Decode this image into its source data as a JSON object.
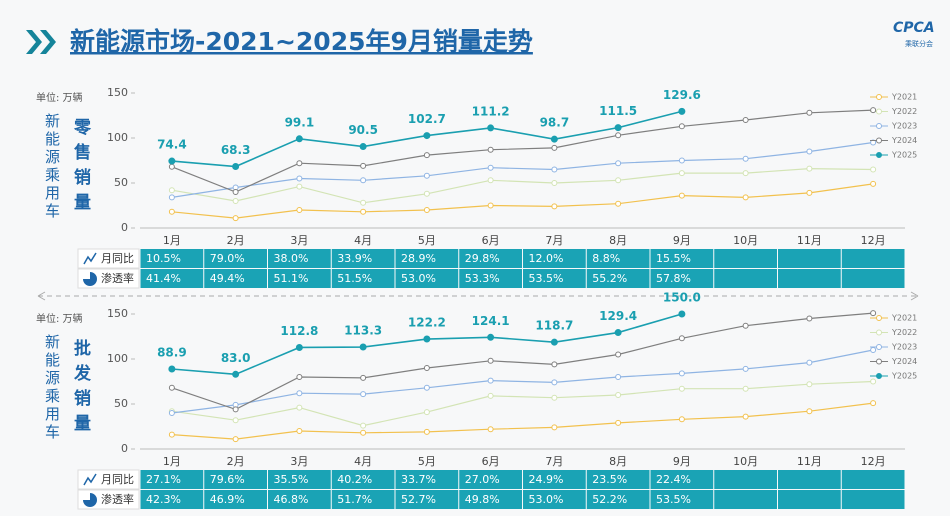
{
  "title": "新能源市场-2021~2025年9月销量走势",
  "logo": "CPCA",
  "logo_sub": "乘联分会",
  "chart_data": [
    {
      "type": "line",
      "title": "零售销量",
      "side_label": "新能源乘用车",
      "unit": "单位: 万辆",
      "categories": [
        "1月",
        "2月",
        "3月",
        "4月",
        "5月",
        "6月",
        "7月",
        "8月",
        "9月",
        "10月",
        "11月",
        "12月"
      ],
      "ylim": [
        0,
        150
      ],
      "yticks": [
        0,
        50,
        100,
        150
      ],
      "series": [
        {
          "name": "Y2021",
          "color": "#f2c14e",
          "values": [
            18,
            11,
            20,
            18,
            20,
            25,
            24,
            27,
            36,
            34,
            39,
            49
          ]
        },
        {
          "name": "Y2022",
          "color": "#d3e4b5",
          "values": [
            42,
            30,
            46,
            28,
            38,
            53,
            50,
            53,
            61,
            61,
            66,
            65
          ]
        },
        {
          "name": "Y2023",
          "color": "#8fb4e3",
          "values": [
            34,
            45,
            55,
            53,
            58,
            67,
            65,
            72,
            75,
            77,
            85,
            95
          ]
        },
        {
          "name": "Y2024",
          "color": "#7f7f7f",
          "values": [
            68,
            40,
            72,
            69,
            81,
            87,
            89,
            103,
            113,
            120,
            128,
            131
          ]
        },
        {
          "name": "Y2025",
          "color": "#1a9fb0",
          "values": [
            74.4,
            68.3,
            99.1,
            90.5,
            102.7,
            111.2,
            98.7,
            111.5,
            129.6,
            null,
            null,
            null
          ]
        }
      ],
      "table": {
        "rows": [
          {
            "name": "月同比",
            "cells": [
              "10.5%",
              "79.0%",
              "38.0%",
              "33.9%",
              "28.9%",
              "29.8%",
              "12.0%",
              "8.8%",
              "15.5%"
            ]
          },
          {
            "name": "渗透率",
            "cells": [
              "41.4%",
              "49.4%",
              "51.1%",
              "51.5%",
              "53.0%",
              "53.3%",
              "53.5%",
              "55.2%",
              "57.8%"
            ]
          }
        ]
      }
    },
    {
      "type": "line",
      "title": "批发销量",
      "side_label": "新能源乘用车",
      "unit": "单位: 万辆",
      "categories": [
        "1月",
        "2月",
        "3月",
        "4月",
        "5月",
        "6月",
        "7月",
        "8月",
        "9月",
        "10月",
        "11月",
        "12月"
      ],
      "ylim": [
        0,
        150
      ],
      "yticks": [
        0,
        50,
        100,
        150
      ],
      "series": [
        {
          "name": "Y2021",
          "color": "#f2c14e",
          "values": [
            16,
            11,
            20,
            18,
            19,
            22,
            24,
            29,
            33,
            36,
            42,
            51
          ]
        },
        {
          "name": "Y2022",
          "color": "#d3e4b5",
          "values": [
            42,
            32,
            46,
            26,
            41,
            59,
            57,
            60,
            67,
            67,
            72,
            75
          ]
        },
        {
          "name": "Y2023",
          "color": "#8fb4e3",
          "values": [
            40,
            49,
            62,
            61,
            68,
            76,
            74,
            80,
            84,
            89,
            96,
            110
          ]
        },
        {
          "name": "Y2024",
          "color": "#7f7f7f",
          "values": [
            68,
            44,
            80,
            79,
            90,
            98,
            94,
            105,
            123,
            137,
            145,
            151
          ]
        },
        {
          "name": "Y2025",
          "color": "#1a9fb0",
          "values": [
            88.9,
            83.0,
            112.8,
            113.3,
            122.2,
            124.1,
            118.7,
            129.4,
            150.0,
            null,
            null,
            null
          ],
          "value_labels": [
            "88.9",
            "83.0",
            "112.8",
            "113.3",
            "122.2",
            "124.1",
            "118.7",
            "129.4",
            "150.0",
            null,
            null,
            null
          ]
        }
      ],
      "table": {
        "rows": [
          {
            "name": "月同比",
            "cells": [
              "27.1%",
              "79.6%",
              "35.5%",
              "40.2%",
              "33.7%",
              "27.0%",
              "24.9%",
              "23.5%",
              "22.4%"
            ]
          },
          {
            "name": "渗透率",
            "cells": [
              "42.3%",
              "46.9%",
              "46.8%",
              "51.7%",
              "52.7%",
              "49.8%",
              "53.0%",
              "52.2%",
              "53.5%"
            ]
          }
        ]
      }
    }
  ]
}
